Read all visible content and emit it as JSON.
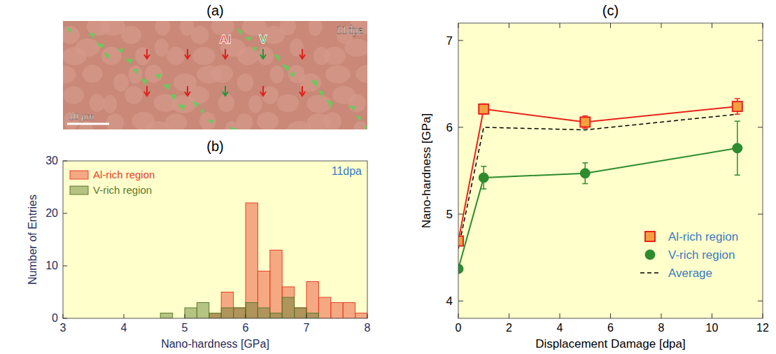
{
  "chart_data": [
    {
      "type": "image",
      "title": "(a)",
      "annotation": "11dpa",
      "scale_bar": "10 μm",
      "labels": [
        {
          "text": "Al",
          "color": "#e0201b"
        },
        {
          "text": "V",
          "color": "#1a9a3a"
        }
      ]
    },
    {
      "type": "histogram",
      "title": "(b)",
      "x_label": "Nano-hardness [GPa]",
      "y_label": "Number of Entries",
      "annotation": "11dpa",
      "bins": [
        4.6,
        4.8,
        5.0,
        5.2,
        5.4,
        5.6,
        5.8,
        6.0,
        6.2,
        6.4,
        6.6,
        6.8,
        7.0,
        7.2,
        7.4,
        7.6,
        7.8,
        8.0
      ],
      "series": [
        {
          "name": "Al-rich region",
          "color": "#e8402a",
          "values": [
            0,
            0,
            0,
            0,
            1,
            5,
            2,
            22,
            9,
            13,
            6,
            2,
            7,
            4,
            3,
            3,
            1
          ]
        },
        {
          "name": "V-rich region",
          "color": "#5a7a2a",
          "values": [
            1,
            0,
            2,
            3,
            1,
            2,
            2,
            3,
            2,
            1,
            4,
            2,
            1,
            0,
            0,
            0,
            0
          ]
        }
      ],
      "xlim": [
        3,
        8
      ],
      "xticks": [
        3,
        4,
        5,
        6,
        7,
        8
      ],
      "ylim": [
        0,
        30
      ],
      "yticks": [
        0,
        10,
        20,
        30
      ],
      "legend": "upper left"
    },
    {
      "type": "line",
      "title": "(c)",
      "x_label": "Displacement Damage [dpa]",
      "y_label": "Nano-hardness [GPa]",
      "x": [
        0,
        1,
        5,
        11
      ],
      "series": [
        {
          "name": "Al-rich region",
          "color": "#e8221c",
          "marker": "square",
          "line_style": "solid",
          "values": [
            4.69,
            6.21,
            6.06,
            6.24
          ],
          "errors": [
            0.04,
            0.06,
            0.07,
            0.09
          ]
        },
        {
          "name": "V-rich region",
          "color": "#2e8b2e",
          "marker": "circle",
          "line_style": "solid",
          "values": [
            4.37,
            5.42,
            5.47,
            5.76
          ],
          "errors": [
            0.03,
            0.13,
            0.12,
            0.31
          ]
        },
        {
          "name": "Average",
          "color": "#000000",
          "marker": "none",
          "line_style": "dashed",
          "values": [
            4.6,
            6.0,
            5.97,
            6.15
          ]
        }
      ],
      "xlim": [
        0,
        12
      ],
      "xticks": [
        0,
        2,
        4,
        6,
        8,
        10,
        12
      ],
      "ylim": [
        3.8,
        7.2
      ],
      "yticks": [
        4,
        5,
        6,
        7
      ],
      "legend": "lower right"
    }
  ]
}
